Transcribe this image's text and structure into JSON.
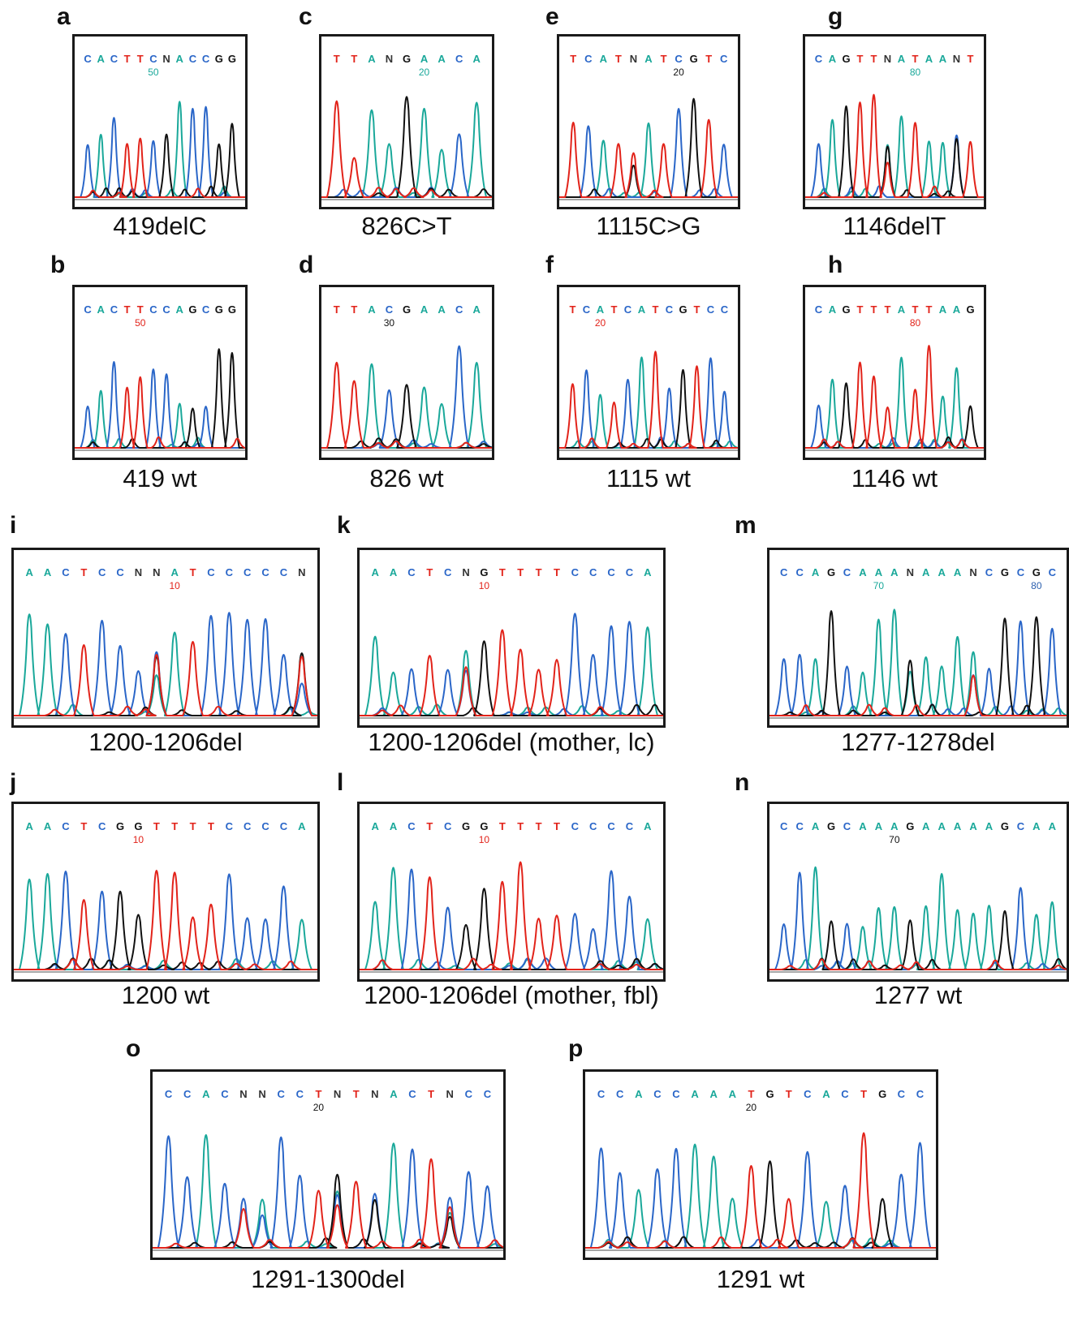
{
  "figure": {
    "panels": [
      {
        "id": "a",
        "caption": "419delC",
        "bases": "CACTTCNACCGG",
        "markers": [
          {
            "num": "50",
            "after": 6,
            "color": "#1aa89a"
          }
        ]
      },
      {
        "id": "b",
        "caption": "419 wt",
        "bases": "CACTTCCAGCGG",
        "markers": [
          {
            "num": "50",
            "after": 5,
            "color": "#e2231a"
          }
        ]
      },
      {
        "id": "c",
        "caption": "826C>T",
        "bases": "TTANGAACA",
        "markers": [
          {
            "num": "20",
            "after": 6,
            "color": "#1aa89a"
          }
        ]
      },
      {
        "id": "d",
        "caption": "826 wt",
        "bases": "TTACGAACA",
        "markers": [
          {
            "num": "30",
            "after": 4,
            "color": "#111111"
          }
        ]
      },
      {
        "id": "e",
        "caption": "1115C>G",
        "bases": "TCATNATCGTC",
        "markers": [
          {
            "num": "20",
            "after": 8,
            "color": "#111111"
          }
        ]
      },
      {
        "id": "f",
        "caption": "1115 wt",
        "bases": "TCATCATCGTCC",
        "markers": [
          {
            "num": "20",
            "after": 3,
            "color": "#e2231a"
          }
        ]
      },
      {
        "id": "g",
        "caption": "1146delT",
        "bases": "CAGTTNATAANT",
        "markers": [
          {
            "num": "80",
            "after": 8,
            "color": "#1aa89a"
          }
        ]
      },
      {
        "id": "h",
        "caption": "1146 wt",
        "bases": "CAGTTTATTAAG",
        "markers": [
          {
            "num": "80",
            "after": 8,
            "color": "#e2231a"
          }
        ]
      },
      {
        "id": "i",
        "caption": "1200-1206del",
        "bases": "AACTCCNNATCCCCCN",
        "markers": [
          {
            "num": "10",
            "after": 9,
            "color": "#e2231a"
          }
        ]
      },
      {
        "id": "j",
        "caption": "1200 wt",
        "bases": "AACTCGGTTTTCCCCA",
        "markers": [
          {
            "num": "10",
            "after": 7,
            "color": "#e2231a"
          }
        ]
      },
      {
        "id": "k",
        "caption": "1200-1206del (mother, lc)",
        "bases": "AACTCNGTTTTCCCCA",
        "markers": [
          {
            "num": "10",
            "after": 7,
            "color": "#e2231a"
          }
        ]
      },
      {
        "id": "l",
        "caption": "1200-1206del (mother, fbl)",
        "bases": "AACTCGGTTTTCCCCA",
        "markers": [
          {
            "num": "10",
            "after": 7,
            "color": "#e2231a"
          }
        ]
      },
      {
        "id": "m",
        "caption": "1277-1278del",
        "bases": "CCAGCAAANAAANCGCGC",
        "markers": [
          {
            "num": "70",
            "after": 7,
            "color": "#1aa89a"
          },
          {
            "num": "80",
            "after": 17,
            "color": "#2b5fae"
          }
        ]
      },
      {
        "id": "n",
        "caption": "1277 wt",
        "bases": "CCAGCAAAGAAAAAGCAA",
        "markers": [
          {
            "num": "70",
            "after": 8,
            "color": "#111111"
          }
        ]
      },
      {
        "id": "o",
        "caption": "1291-1300del",
        "bases": "CCACNNCCTNTNACTNCC",
        "markers": [
          {
            "num": "20",
            "after": 9,
            "color": "#111111"
          }
        ]
      },
      {
        "id": "p",
        "caption": "1291 wt",
        "bases": "CCACCAAATGTCACTGCC",
        "markers": [
          {
            "num": "20",
            "after": 9,
            "color": "#111111"
          }
        ]
      }
    ],
    "base_colors": {
      "A": "#1aa89a",
      "C": "#2a66c8",
      "G": "#111111",
      "T": "#e2231a",
      "N": "#333333"
    }
  }
}
